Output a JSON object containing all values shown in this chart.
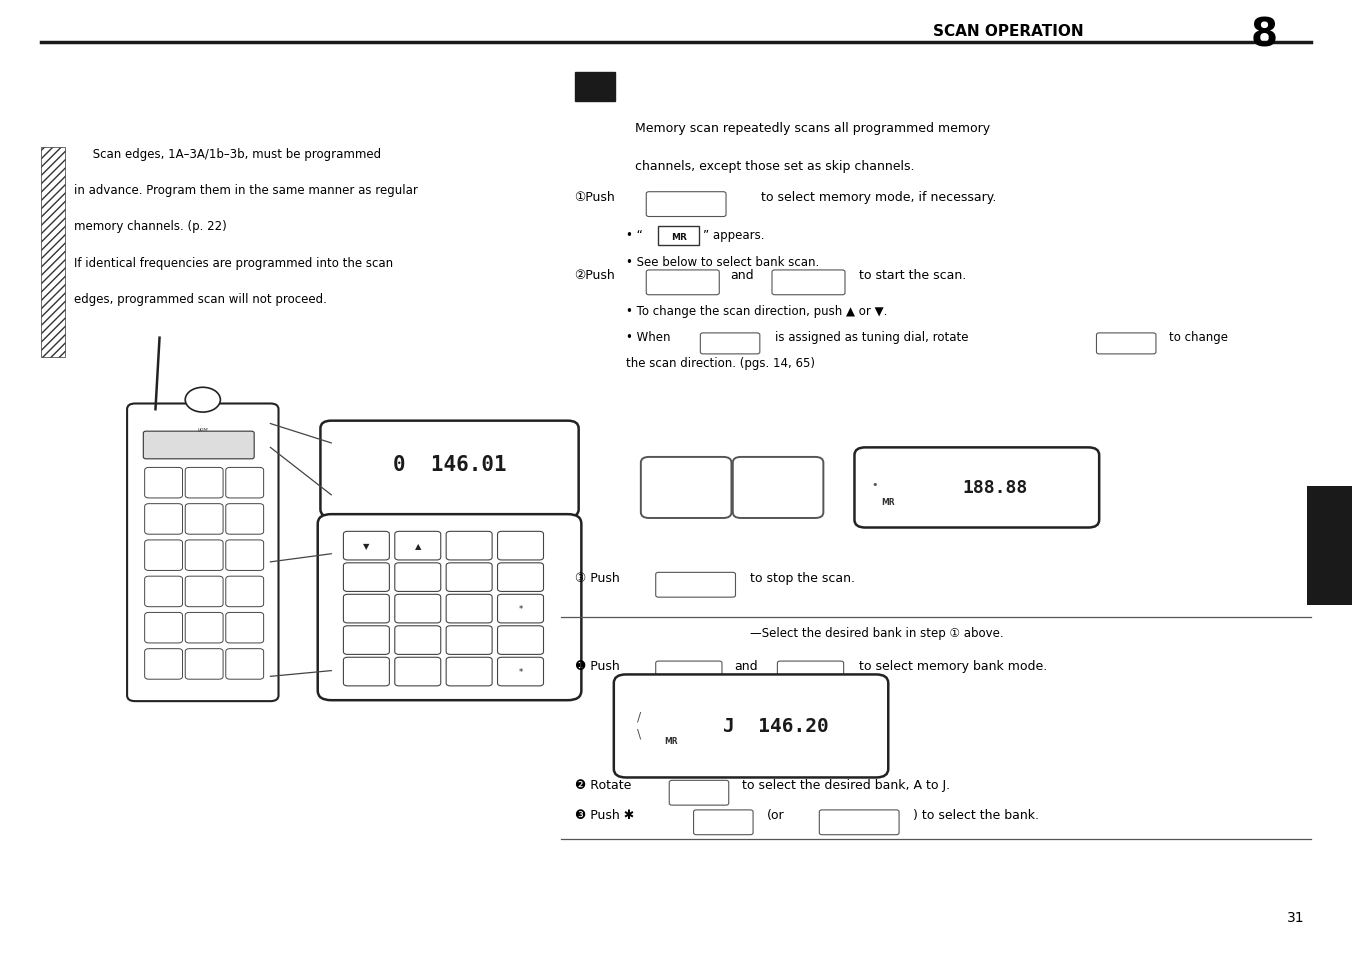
{
  "page_bg": "#ffffff",
  "header_text": "SCAN OPERATION",
  "header_number": "8",
  "page_number": "31",
  "left_note_lines": [
    "     Scan edges, 1A–3A/1b–3b, must be programmed",
    "in advance. Program them in the same manner as regular",
    "memory channels. (p. 22)",
    "If identical frequencies are programmed into the scan",
    "edges, programmed scan will not proceed."
  ],
  "memory_scan_text": [
    "Memory scan repeatedly scans all programmed memory",
    "channels, except those set as skip channels."
  ],
  "text_color": "#000000",
  "dark_color": "#1a1a1a",
  "mid_color": "#444444",
  "light_color": "#555555"
}
